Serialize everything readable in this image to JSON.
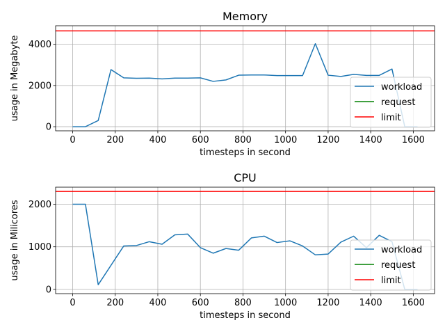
{
  "chart_data": [
    {
      "type": "line",
      "title": "Memory",
      "xlabel": "timesteps in second",
      "ylabel": "usage in Megabyte",
      "xlim": [
        -80,
        1700
      ],
      "ylim": [
        -200,
        4900
      ],
      "xticks": [
        0,
        200,
        400,
        600,
        800,
        1000,
        1200,
        1400,
        1600
      ],
      "yticks": [
        0,
        2000,
        4000
      ],
      "grid": true,
      "legend_position": "lower right",
      "series": [
        {
          "name": "workload",
          "color": "#1f77b4",
          "x": [
            0,
            60,
            120,
            180,
            240,
            300,
            360,
            420,
            480,
            540,
            600,
            660,
            720,
            780,
            840,
            900,
            960,
            1020,
            1080,
            1140,
            1200,
            1260,
            1320,
            1380,
            1440,
            1500,
            1560,
            1620
          ],
          "y": [
            0,
            0,
            300,
            2770,
            2370,
            2350,
            2360,
            2320,
            2360,
            2360,
            2370,
            2200,
            2270,
            2500,
            2510,
            2510,
            2480,
            2480,
            2480,
            4030,
            2500,
            2440,
            2540,
            2490,
            2490,
            2800,
            0,
            0
          ]
        },
        {
          "name": "request",
          "color": "#008000",
          "constant": null
        },
        {
          "name": "limit",
          "color": "#ff0000",
          "constant": 4650
        }
      ]
    },
    {
      "type": "line",
      "title": "CPU",
      "xlabel": "timesteps in second",
      "ylabel": "usage in Milicores",
      "xlim": [
        -80,
        1700
      ],
      "ylim": [
        -100,
        2400
      ],
      "xticks": [
        0,
        200,
        400,
        600,
        800,
        1000,
        1200,
        1400,
        1600
      ],
      "yticks": [
        0,
        1000,
        2000
      ],
      "grid": true,
      "legend_position": "lower right",
      "series": [
        {
          "name": "workload",
          "color": "#1f77b4",
          "x": [
            0,
            60,
            120,
            240,
            300,
            360,
            420,
            480,
            540,
            600,
            660,
            720,
            780,
            840,
            900,
            960,
            1020,
            1080,
            1140,
            1200,
            1260,
            1320,
            1380,
            1440,
            1500,
            1560,
            1620
          ],
          "y": [
            2000,
            2000,
            110,
            1020,
            1030,
            1120,
            1060,
            1280,
            1300,
            980,
            850,
            960,
            920,
            1210,
            1250,
            1100,
            1140,
            1020,
            810,
            830,
            1110,
            1250,
            980,
            1270,
            1120,
            0,
            0
          ]
        },
        {
          "name": "request",
          "color": "#008000",
          "constant": null
        },
        {
          "name": "limit",
          "color": "#ff0000",
          "constant": 2300
        }
      ]
    }
  ]
}
